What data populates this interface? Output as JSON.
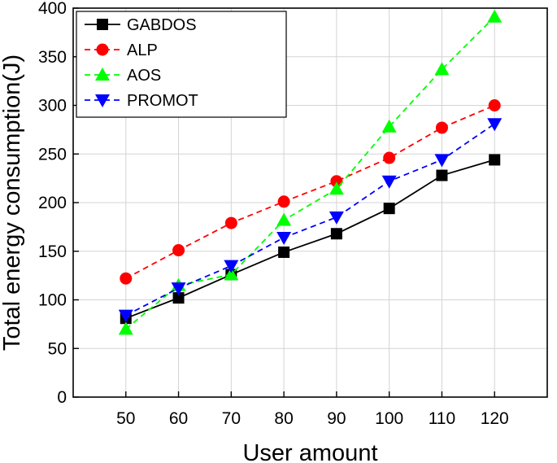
{
  "chart_data": {
    "type": "line",
    "xlabel": "User amount",
    "ylabel": "Total energy consumption(J)",
    "x": [
      50,
      60,
      70,
      80,
      90,
      100,
      110,
      120
    ],
    "xlim": [
      40,
      130
    ],
    "ylim": [
      0,
      400
    ],
    "xticks": [
      "50",
      "60",
      "70",
      "80",
      "90",
      "100",
      "110",
      "120"
    ],
    "yticks": [
      "0",
      "50",
      "100",
      "150",
      "200",
      "250",
      "300",
      "350",
      "400"
    ],
    "grid": true,
    "legend_position": "top-left",
    "series": [
      {
        "name": "GABDOS",
        "values": [
          81,
          102,
          126,
          149,
          168,
          194,
          228,
          244
        ],
        "color": "#000000",
        "marker": "square",
        "dashed": false
      },
      {
        "name": "ALP",
        "values": [
          122,
          151,
          179,
          201,
          222,
          246,
          277,
          300
        ],
        "color": "#ff0000",
        "marker": "circle",
        "dashed": true
      },
      {
        "name": "AOS",
        "values": [
          70,
          115,
          126,
          182,
          214,
          278,
          337,
          391
        ],
        "color": "#00ff00",
        "marker": "triangle-up",
        "dashed": true
      },
      {
        "name": "PROMOT",
        "values": [
          84,
          112,
          135,
          164,
          185,
          222,
          244,
          281
        ],
        "color": "#0000ff",
        "marker": "triangle-down",
        "dashed": true
      }
    ]
  }
}
